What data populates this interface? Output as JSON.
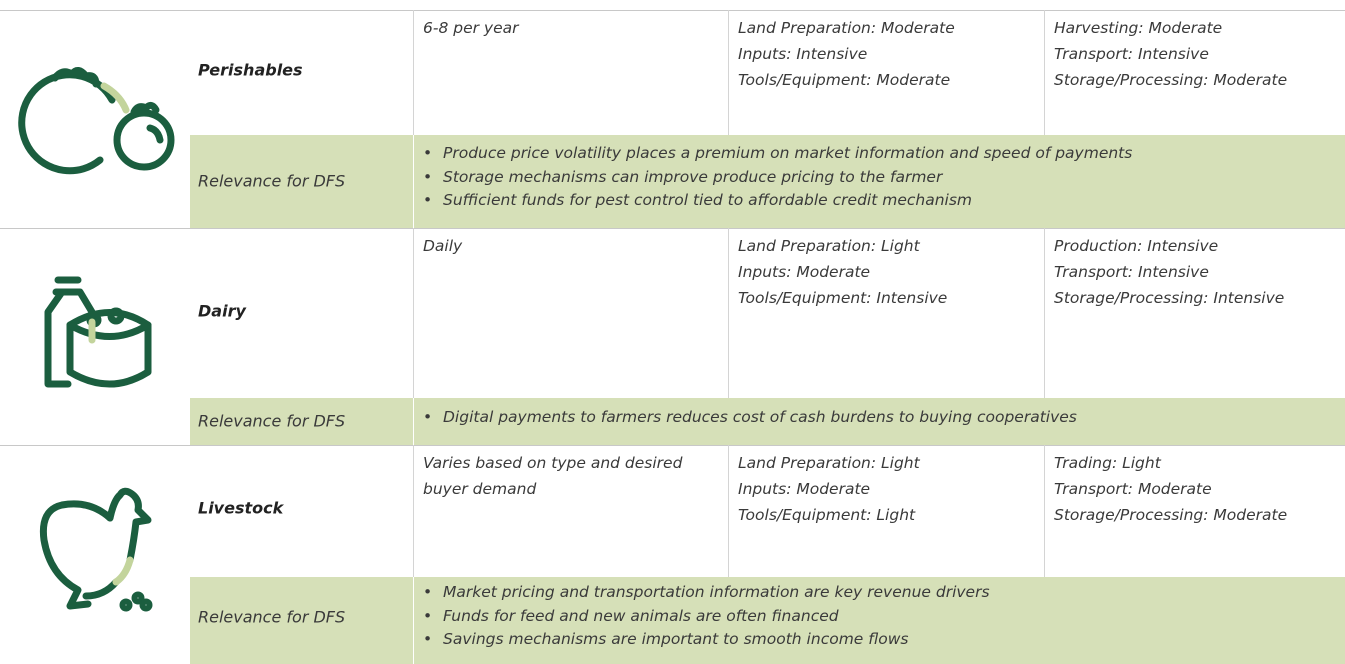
{
  "rows": [
    {
      "name": "Perishables",
      "frequency": "6-8 per year",
      "inputs": [
        "Land Preparation: Moderate",
        "Inputs: Intensive",
        "Tools/Equipment: Moderate"
      ],
      "post_harvest": [
        "Harvesting: Moderate",
        "Transport: Intensive",
        "Storage/Processing: Moderate"
      ],
      "relevance_label": "Relevance for DFS",
      "relevance": [
        "Produce price volatility places a premium on market information and speed of payments",
        "Storage mechanisms can improve produce pricing to the farmer",
        "Sufficient funds for pest control tied to affordable credit mechanism"
      ]
    },
    {
      "name": "Dairy",
      "frequency": "Daily",
      "inputs": [
        "Land Preparation: Light",
        "Inputs: Moderate",
        "Tools/Equipment: Intensive"
      ],
      "post_harvest": [
        "Production: Intensive",
        "Transport: Intensive",
        "Storage/Processing: Intensive"
      ],
      "relevance_label": "Relevance for DFS",
      "relevance": [
        "Digital payments to farmers reduces cost of cash burdens to buying cooperatives"
      ]
    },
    {
      "name": "Livestock",
      "frequency": "Varies based on type and desired buyer demand",
      "inputs": [
        "Land Preparation: Light",
        "Inputs: Moderate",
        "Tools/Equipment: Light"
      ],
      "post_harvest": [
        "Trading: Light",
        "Transport: Moderate",
        "Storage/Processing: Moderate"
      ],
      "relevance_label": "Relevance for DFS",
      "relevance": [
        "Market pricing and transportation information are key revenue drivers",
        "Funds for feed and new animals are often financed",
        "Savings mechanisms are important to smooth income flows"
      ]
    }
  ]
}
